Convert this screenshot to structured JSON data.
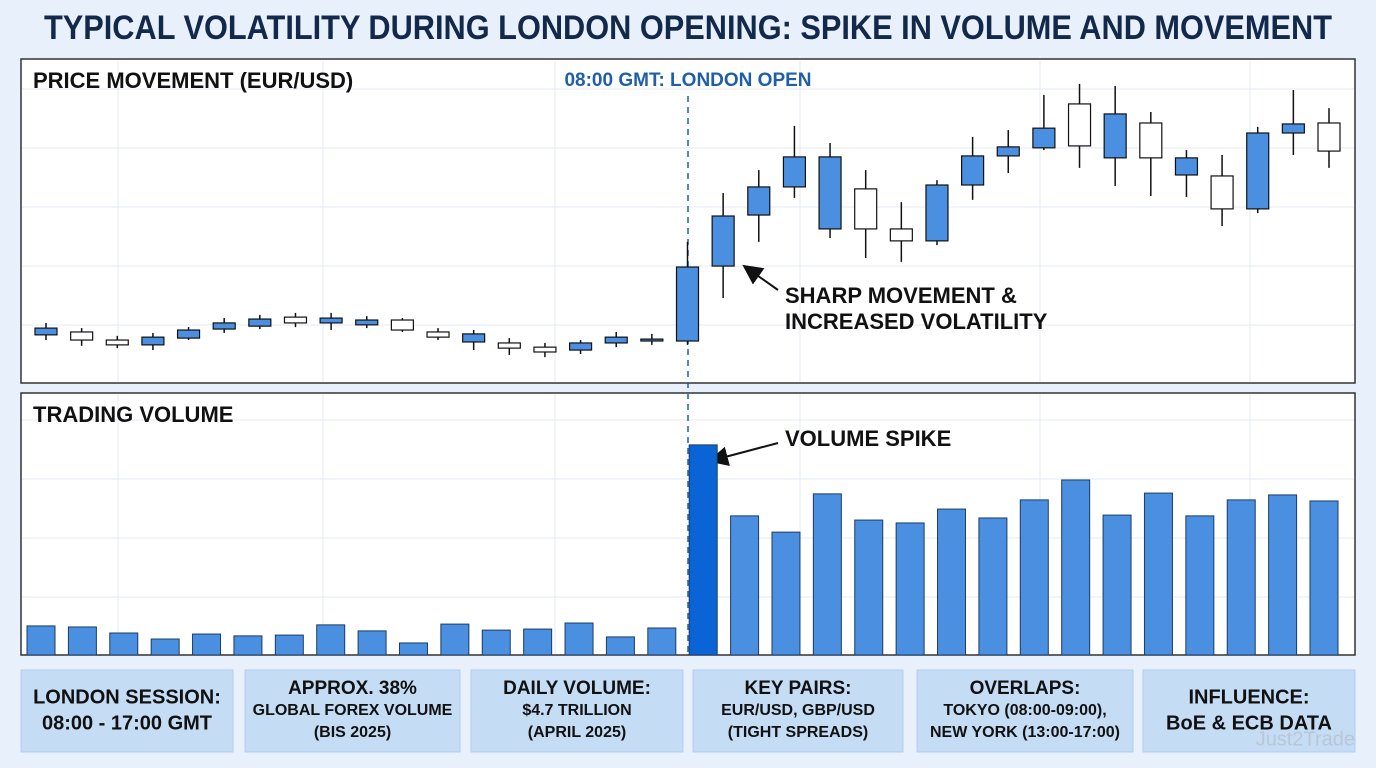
{
  "page_title": "TYPICAL VOLATILITY DURING LONDON OPENING: SPIKE IN VOLUME AND MOVEMENT",
  "chart_data": [
    {
      "type": "candlestick",
      "title": "PRICE MOVEMENT (EUR/USD)",
      "ylim": [
        0,
        100
      ],
      "grid": true,
      "up_color": "#4a8fe0",
      "down_color": "#ffffff",
      "open": [
        14.9,
        15.8,
        13.3,
        11.8,
        13.9,
        16.7,
        17.6,
        20.4,
        18.6,
        18.0,
        19.5,
        15.8,
        12.7,
        12.4,
        11.1,
        10.2,
        12.4,
        13.0,
        13.0,
        36.2,
        52.0,
        60.7,
        47.7,
        60.1,
        47.7,
        44.0,
        61.3,
        70.3,
        72.8,
        86.4,
        69.7,
        80.5,
        64.4,
        64.1,
        53.9,
        77.4,
        80.5
      ],
      "high": [
        18.6,
        17.0,
        14.6,
        15.5,
        17.3,
        20.1,
        21.1,
        21.7,
        21.7,
        20.7,
        20.1,
        17.0,
        16.4,
        13.9,
        12.4,
        13.3,
        15.8,
        15.2,
        43.7,
        58.8,
        65.9,
        79.6,
        74.3,
        65.9,
        56.0,
        62.8,
        76.2,
        78.3,
        89.2,
        92.6,
        92.0,
        83.9,
        72.1,
        70.6,
        79.3,
        90.7,
        85.1
      ],
      "low": [
        13.3,
        11.5,
        10.8,
        10.2,
        13.3,
        15.5,
        16.7,
        17.3,
        16.4,
        17.0,
        15.8,
        13.3,
        10.2,
        8.7,
        8.0,
        9.0,
        11.1,
        11.8,
        11.8,
        26.3,
        43.7,
        57.3,
        44.9,
        38.7,
        37.5,
        42.7,
        56.7,
        65.0,
        72.1,
        66.6,
        61.0,
        57.9,
        57.6,
        48.6,
        52.6,
        70.6,
        66.6
      ],
      "close": [
        17.0,
        13.3,
        11.8,
        14.2,
        16.4,
        18.6,
        19.8,
        18.6,
        20.1,
        19.5,
        16.4,
        14.2,
        15.2,
        10.8,
        9.6,
        12.4,
        14.2,
        13.6,
        35.9,
        51.7,
        60.7,
        70.0,
        70.0,
        47.7,
        44.0,
        61.3,
        70.3,
        73.1,
        78.9,
        73.4,
        83.3,
        69.7,
        69.7,
        53.9,
        77.4,
        80.2,
        71.8
      ],
      "annotations": [
        {
          "text": "08:00 GMT: LONDON OPEN",
          "color": "#1f5fa8"
        },
        {
          "lines": [
            "SHARP MOVEMENT &",
            "INCREASED VOLATILITY"
          ]
        }
      ]
    },
    {
      "type": "bar",
      "title": "TRADING VOLUME",
      "ylim": [
        0,
        100
      ],
      "grid": true,
      "color": "#4a8fe0",
      "highlight": {
        "index": 16,
        "color": "#0b64d6"
      },
      "values": [
        11.1,
        10.7,
        8.4,
        6.1,
        8.0,
        7.3,
        7.6,
        11.5,
        9.2,
        4.6,
        11.8,
        9.5,
        9.9,
        12.2,
        6.9,
        10.3,
        80.2,
        53.1,
        46.9,
        61.5,
        51.5,
        50.4,
        55.7,
        52.3,
        59.2,
        66.8,
        53.4,
        61.8,
        53.1,
        59.2,
        61.1,
        58.8
      ],
      "annotations": [
        {
          "text": "VOLUME SPIKE"
        }
      ]
    }
  ],
  "info_boxes": [
    {
      "lines": [
        "LONDON SESSION:",
        "08:00 - 17:00 GMT"
      ]
    },
    {
      "lines": [
        "APPROX. 38%",
        "GLOBAL FOREX VOLUME",
        "(BIS 2025)"
      ]
    },
    {
      "lines": [
        "DAILY VOLUME:",
        "$4.7 TRILLION",
        "(APRIL 2025)"
      ]
    },
    {
      "lines": [
        "KEY PAIRS:",
        "EUR/USD, GBP/USD",
        "(TIGHT SPREADS)"
      ]
    },
    {
      "lines": [
        "OVERLAPS:",
        "TOKYO (08:00-09:00),",
        "NEW YORK (13:00-17:00)"
      ]
    },
    {
      "lines": [
        "INFLUENCE:",
        "BoE & ECB DATA"
      ]
    }
  ],
  "watermark": "Just2Trade"
}
